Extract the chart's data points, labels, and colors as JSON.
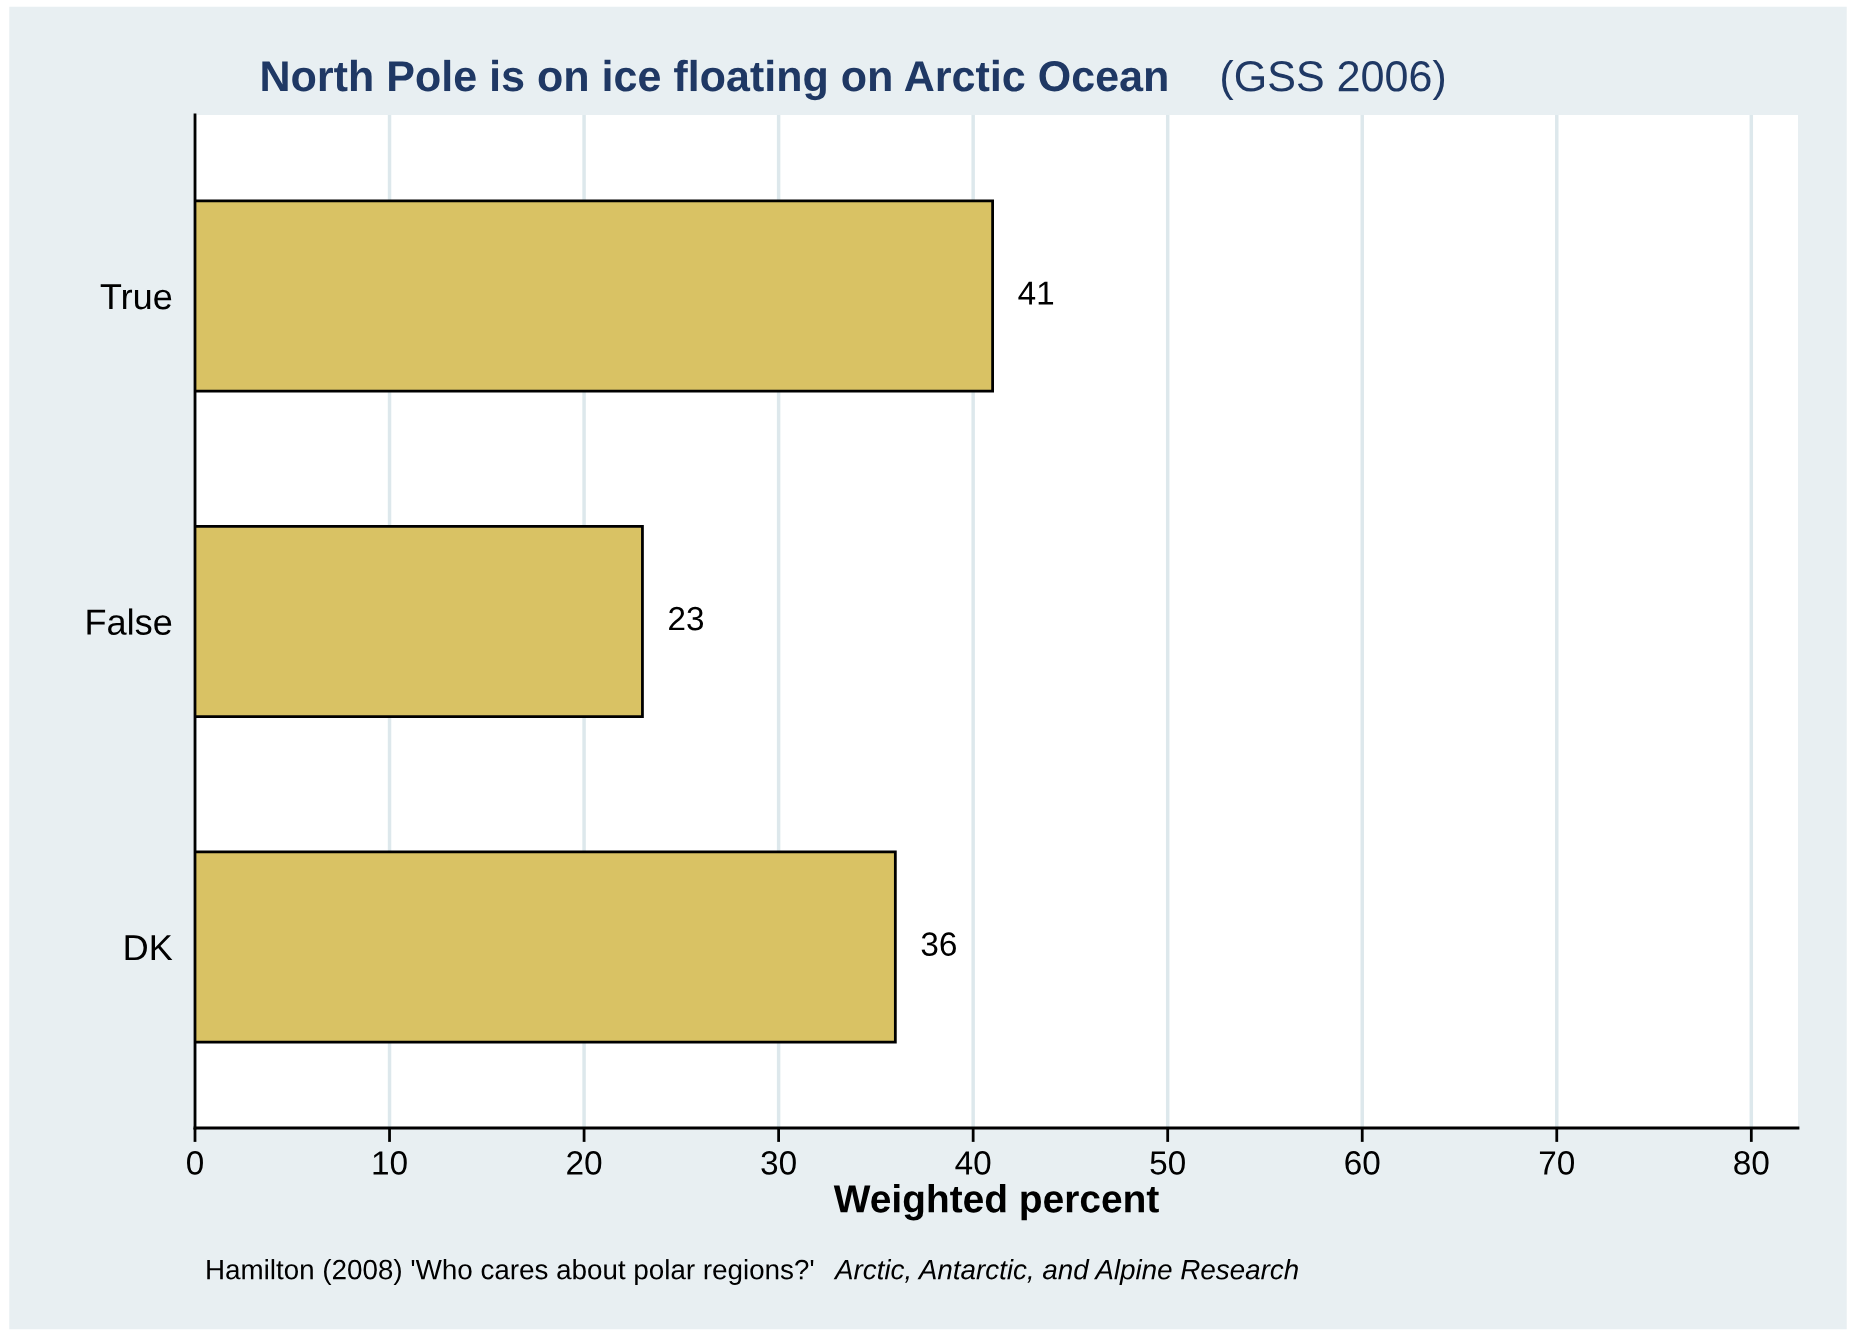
{
  "chart_data": {
    "type": "bar",
    "orientation": "horizontal",
    "title": "North Pole is on ice floating on Arctic Ocean",
    "subtitle": "(GSS 2006)",
    "xlabel": "Weighted percent",
    "categories": [
      "True",
      "False",
      "DK"
    ],
    "values": [
      41,
      23,
      36
    ],
    "color": "#d9c264",
    "data_labels": true,
    "xlim": [
      0,
      82.4
    ],
    "xticks": [
      0,
      10,
      20,
      30,
      40,
      50,
      60,
      70,
      80
    ],
    "grid": "x",
    "legend": false,
    "annotations": [
      "Hamilton (2008) 'Who cares about polar regions?'",
      "Arctic, Antarctic, and Alpine Research"
    ]
  }
}
